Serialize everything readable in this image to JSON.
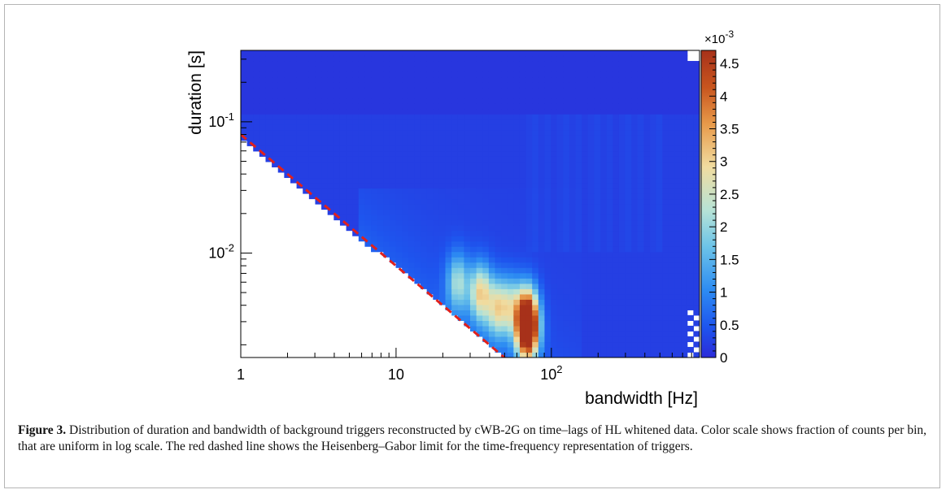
{
  "chart_data": {
    "type": "heatmap",
    "title": "",
    "xlabel": "bandwidth [Hz]",
    "ylabel": "duration [s]",
    "x_scale": "log",
    "y_scale": "log",
    "xlim": [
      1,
      900
    ],
    "ylim": [
      0.0016,
      0.35
    ],
    "x_ticks": [
      {
        "value": 1,
        "label": "1"
      },
      {
        "value": 10,
        "label": "10"
      },
      {
        "value": 100,
        "label": "10^2"
      }
    ],
    "y_ticks": [
      {
        "value": 0.01,
        "label": "10^-2"
      },
      {
        "value": 0.1,
        "label": "10^-1"
      }
    ],
    "colorbar": {
      "multiplier": "×10^-3",
      "min": 0,
      "max": 4.7,
      "ticks": [
        0,
        0.5,
        1,
        1.5,
        2,
        2.5,
        3,
        3.5,
        4,
        4.5
      ],
      "tick_labels": [
        "0",
        "0.5",
        "1",
        "1.5",
        "2",
        "2.5",
        "3",
        "3.5",
        "4",
        "4.5"
      ],
      "colormap": [
        "#2b2bd9",
        "#1e55ee",
        "#2d8cf2",
        "#6cc3e8",
        "#b7e3d6",
        "#f0dca0",
        "#e89a4a",
        "#c8551e",
        "#a7311a"
      ]
    },
    "limit_line": {
      "description": "Heisenberg–Gabor limit",
      "color": "#e0211d",
      "style": "dashed",
      "points": [
        [
          1,
          0.08
        ],
        [
          55,
          0.00145
        ]
      ]
    },
    "hotspots": [
      {
        "x": 70,
        "y": 0.0025,
        "value": 4.5
      },
      {
        "x": 70,
        "y": 0.0035,
        "value": 3.2
      },
      {
        "x": 35,
        "y": 0.005,
        "value": 2.6
      },
      {
        "x": 45,
        "y": 0.0038,
        "value": 2.2
      },
      {
        "x": 25,
        "y": 0.006,
        "value": 1.8
      },
      {
        "x": 55,
        "y": 0.004,
        "value": 1.6
      }
    ]
  },
  "caption": {
    "label": "Figure 3.",
    "text": "Distribution of duration and bandwidth of background triggers reconstructed by cWB-2G on time–lags of HL whitened data. Color scale shows fraction of counts per bin, that are uniform in log scale. The red dashed line shows the Heisenberg–Gabor limit for the time-frequency representation of triggers."
  }
}
